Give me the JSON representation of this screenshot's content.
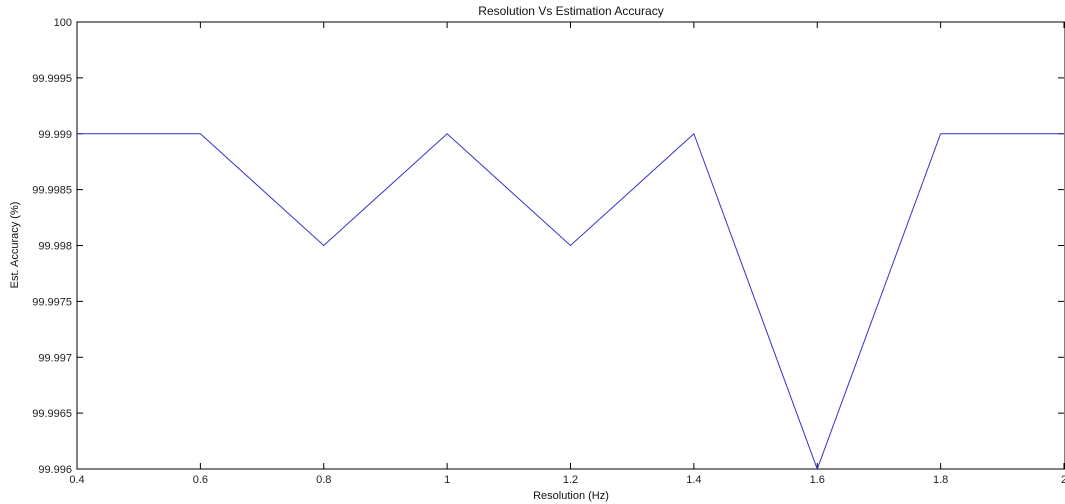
{
  "chart_data": {
    "type": "line",
    "title": "Resolution Vs Estimation Accuracy",
    "xlabel": "Resolution (Hz)",
    "ylabel": "Est. Accuracy (%)",
    "xlim": [
      0.4,
      2
    ],
    "ylim": [
      99.996,
      100
    ],
    "grid": false,
    "x": [
      0.4,
      0.6,
      0.8,
      1.0,
      1.2,
      1.4,
      1.6,
      1.8,
      2.0
    ],
    "series": [
      {
        "values": [
          99.999,
          99.999,
          99.998,
          99.999,
          99.998,
          99.999,
          99.996,
          99.999,
          99.999
        ],
        "color": "#3333cc"
      }
    ],
    "x_ticks": [
      "0.4",
      "0.6",
      "0.8",
      "1",
      "1.2",
      "1.4",
      "1.6",
      "1.8",
      "2"
    ],
    "x_tick_values": [
      0.4,
      0.6,
      0.8,
      1.0,
      1.2,
      1.4,
      1.6,
      1.8,
      2.0
    ],
    "y_ticks": [
      "99.996",
      "99.9965",
      "99.997",
      "99.9975",
      "99.998",
      "99.9985",
      "99.999",
      "99.9995",
      "100"
    ],
    "y_tick_values": [
      99.996,
      99.9965,
      99.997,
      99.9975,
      99.998,
      99.9985,
      99.999,
      99.9995,
      100.0
    ]
  }
}
